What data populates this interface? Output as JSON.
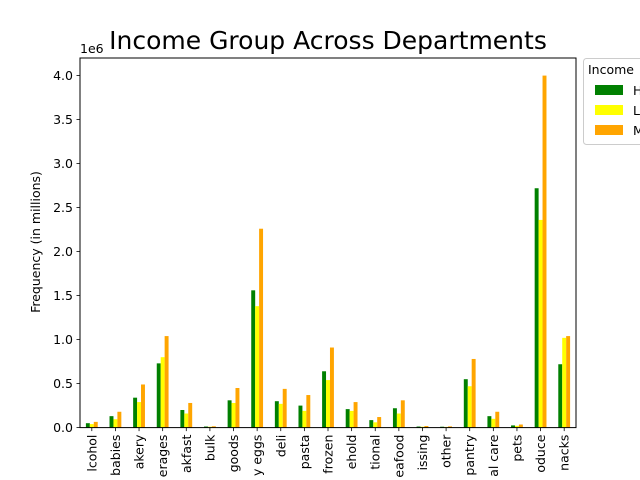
{
  "chart_data": {
    "type": "bar",
    "title": "Income Group Across Departments",
    "xlabel": "",
    "ylabel": "Frequency (in millions)",
    "offset_text": "1e6",
    "ylim": [
      0,
      4200000
    ],
    "yticks": [
      0,
      500000,
      1000000,
      1500000,
      2000000,
      2500000,
      3000000,
      3500000,
      4000000
    ],
    "ytick_labels": [
      "0.0",
      "0.5",
      "1.0",
      "1.5",
      "2.0",
      "2.5",
      "3.0",
      "3.5",
      "4.0"
    ],
    "grid": false,
    "legend": {
      "title": "Income",
      "placement": "outside-top-right",
      "entries": [
        "H",
        "L",
        "M"
      ]
    },
    "categories": [
      "alcohol",
      "babies",
      "bakery",
      "beverages",
      "breakfast",
      "bulk",
      "canned goods",
      "dairy eggs",
      "deli",
      "dry goods pasta",
      "frozen",
      "household",
      "international",
      "meat seafood",
      "missing",
      "other",
      "pantry",
      "personal care",
      "pets",
      "produce",
      "snacks"
    ],
    "category_labels_visible": [
      "lcohol",
      "babies",
      "akery",
      "erages",
      "akfast",
      "bulk",
      "goods",
      "y eggs",
      "deli",
      "pasta",
      "frozen",
      "ehold",
      "tional",
      "eafood",
      "issing",
      "other",
      "pantry",
      "al care",
      "pets",
      "oduce",
      "nacks"
    ],
    "series": [
      {
        "name": "H",
        "color": "#008000",
        "values": [
          50000,
          130000,
          340000,
          730000,
          200000,
          12000,
          310000,
          1560000,
          300000,
          250000,
          640000,
          210000,
          85000,
          220000,
          12000,
          10000,
          550000,
          130000,
          25000,
          2720000,
          720000
        ]
      },
      {
        "name": "L",
        "color": "#ffff00",
        "values": [
          40000,
          95000,
          290000,
          800000,
          160000,
          10000,
          280000,
          1380000,
          270000,
          190000,
          540000,
          190000,
          60000,
          160000,
          10000,
          8000,
          470000,
          100000,
          20000,
          2360000,
          1020000
        ]
      },
      {
        "name": "M",
        "color": "#ffa500",
        "values": [
          65000,
          180000,
          490000,
          1040000,
          280000,
          15000,
          450000,
          2260000,
          440000,
          370000,
          910000,
          290000,
          120000,
          310000,
          18000,
          14000,
          780000,
          180000,
          35000,
          4000000,
          1040000
        ]
      }
    ]
  }
}
